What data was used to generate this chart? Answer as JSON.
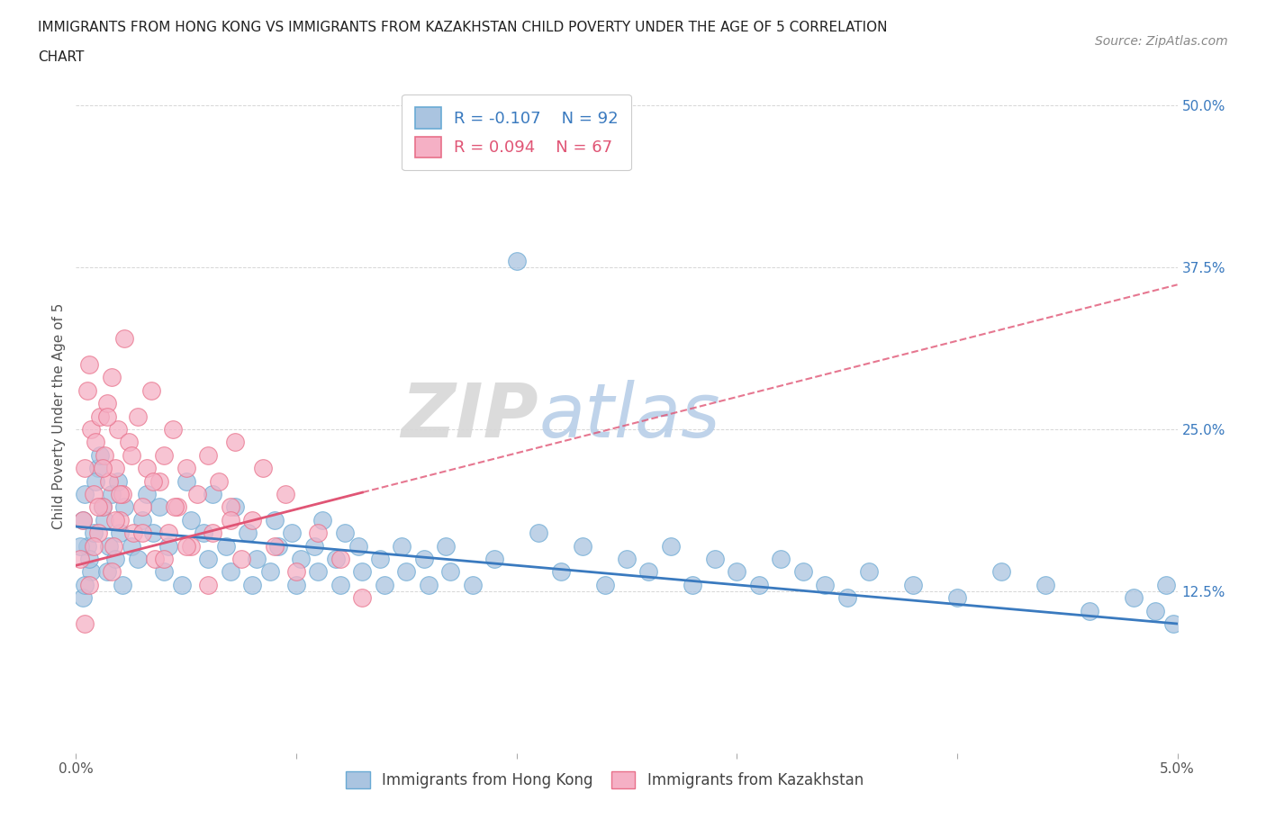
{
  "title_line1": "IMMIGRANTS FROM HONG KONG VS IMMIGRANTS FROM KAZAKHSTAN CHILD POVERTY UNDER THE AGE OF 5 CORRELATION",
  "title_line2": "CHART",
  "source": "Source: ZipAtlas.com",
  "ylabel": "Child Poverty Under the Age of 5",
  "xlim": [
    0.0,
    0.05
  ],
  "ylim": [
    0.0,
    0.52
  ],
  "xticks": [
    0.0,
    0.01,
    0.02,
    0.03,
    0.04,
    0.05
  ],
  "xticklabels": [
    "0.0%",
    "",
    "",
    "",
    "",
    "5.0%"
  ],
  "ytick_positions": [
    0.0,
    0.125,
    0.25,
    0.375,
    0.5
  ],
  "ytick_labels": [
    "",
    "12.5%",
    "25.0%",
    "37.5%",
    "50.0%"
  ],
  "hk_color": "#aac4e0",
  "kz_color": "#f5b0c5",
  "hk_edge_color": "#6aaad4",
  "kz_edge_color": "#e8708a",
  "hk_line_color": "#3a7abf",
  "kz_line_color": "#e05575",
  "hk_R": -0.107,
  "hk_N": 92,
  "kz_R": 0.094,
  "kz_N": 67,
  "background_color": "#ffffff",
  "grid_color": "#bbbbbb",
  "legend_label_hk": "Immigrants from Hong Kong",
  "legend_label_kz": "Immigrants from Kazakhstan",
  "hk_scatter_x": [
    0.0003,
    0.0005,
    0.0007,
    0.0004,
    0.0006,
    0.0008,
    0.001,
    0.0012,
    0.0009,
    0.0011,
    0.0015,
    0.0013,
    0.0014,
    0.0016,
    0.0018,
    0.002,
    0.0022,
    0.0019,
    0.0021,
    0.0025,
    0.003,
    0.0028,
    0.0032,
    0.0035,
    0.004,
    0.0038,
    0.0042,
    0.005,
    0.0048,
    0.0052,
    0.006,
    0.0058,
    0.0062,
    0.007,
    0.0068,
    0.0072,
    0.008,
    0.0078,
    0.0082,
    0.009,
    0.0088,
    0.0092,
    0.01,
    0.0098,
    0.0102,
    0.011,
    0.0108,
    0.0112,
    0.012,
    0.0118,
    0.0122,
    0.013,
    0.0128,
    0.014,
    0.0138,
    0.015,
    0.0148,
    0.016,
    0.0158,
    0.017,
    0.0168,
    0.018,
    0.019,
    0.02,
    0.021,
    0.022,
    0.023,
    0.024,
    0.025,
    0.026,
    0.027,
    0.028,
    0.029,
    0.03,
    0.031,
    0.032,
    0.033,
    0.034,
    0.035,
    0.036,
    0.038,
    0.04,
    0.042,
    0.044,
    0.046,
    0.048,
    0.049,
    0.0495,
    0.0498,
    0.0002,
    0.0003,
    0.0004
  ],
  "hk_scatter_y": [
    0.18,
    0.16,
    0.14,
    0.2,
    0.15,
    0.17,
    0.22,
    0.19,
    0.21,
    0.23,
    0.16,
    0.18,
    0.14,
    0.2,
    0.15,
    0.17,
    0.19,
    0.21,
    0.13,
    0.16,
    0.18,
    0.15,
    0.2,
    0.17,
    0.14,
    0.19,
    0.16,
    0.21,
    0.13,
    0.18,
    0.15,
    0.17,
    0.2,
    0.14,
    0.16,
    0.19,
    0.13,
    0.17,
    0.15,
    0.18,
    0.14,
    0.16,
    0.13,
    0.17,
    0.15,
    0.14,
    0.16,
    0.18,
    0.13,
    0.15,
    0.17,
    0.14,
    0.16,
    0.13,
    0.15,
    0.14,
    0.16,
    0.13,
    0.15,
    0.14,
    0.16,
    0.13,
    0.15,
    0.38,
    0.17,
    0.14,
    0.16,
    0.13,
    0.15,
    0.14,
    0.16,
    0.13,
    0.15,
    0.14,
    0.13,
    0.15,
    0.14,
    0.13,
    0.12,
    0.14,
    0.13,
    0.12,
    0.14,
    0.13,
    0.11,
    0.12,
    0.11,
    0.13,
    0.1,
    0.16,
    0.12,
    0.13
  ],
  "kz_scatter_x": [
    0.0002,
    0.0003,
    0.0004,
    0.0005,
    0.0006,
    0.0007,
    0.0008,
    0.0009,
    0.001,
    0.0011,
    0.0012,
    0.0013,
    0.0014,
    0.0015,
    0.0016,
    0.0017,
    0.0018,
    0.0019,
    0.002,
    0.0021,
    0.0022,
    0.0024,
    0.0026,
    0.0028,
    0.003,
    0.0032,
    0.0034,
    0.0036,
    0.0038,
    0.004,
    0.0042,
    0.0044,
    0.0046,
    0.005,
    0.0052,
    0.0055,
    0.006,
    0.0062,
    0.0065,
    0.007,
    0.0072,
    0.0075,
    0.008,
    0.0085,
    0.009,
    0.0095,
    0.01,
    0.011,
    0.012,
    0.013,
    0.0004,
    0.0006,
    0.0008,
    0.001,
    0.0012,
    0.0014,
    0.0016,
    0.0018,
    0.002,
    0.0025,
    0.003,
    0.0035,
    0.004,
    0.0045,
    0.005,
    0.006,
    0.007
  ],
  "kz_scatter_y": [
    0.15,
    0.18,
    0.22,
    0.28,
    0.3,
    0.25,
    0.2,
    0.24,
    0.17,
    0.26,
    0.19,
    0.23,
    0.27,
    0.21,
    0.29,
    0.16,
    0.22,
    0.25,
    0.18,
    0.2,
    0.32,
    0.24,
    0.17,
    0.26,
    0.19,
    0.22,
    0.28,
    0.15,
    0.21,
    0.23,
    0.17,
    0.25,
    0.19,
    0.22,
    0.16,
    0.2,
    0.23,
    0.17,
    0.21,
    0.19,
    0.24,
    0.15,
    0.18,
    0.22,
    0.16,
    0.2,
    0.14,
    0.17,
    0.15,
    0.12,
    0.1,
    0.13,
    0.16,
    0.19,
    0.22,
    0.26,
    0.14,
    0.18,
    0.2,
    0.23,
    0.17,
    0.21,
    0.15,
    0.19,
    0.16,
    0.13,
    0.18
  ]
}
